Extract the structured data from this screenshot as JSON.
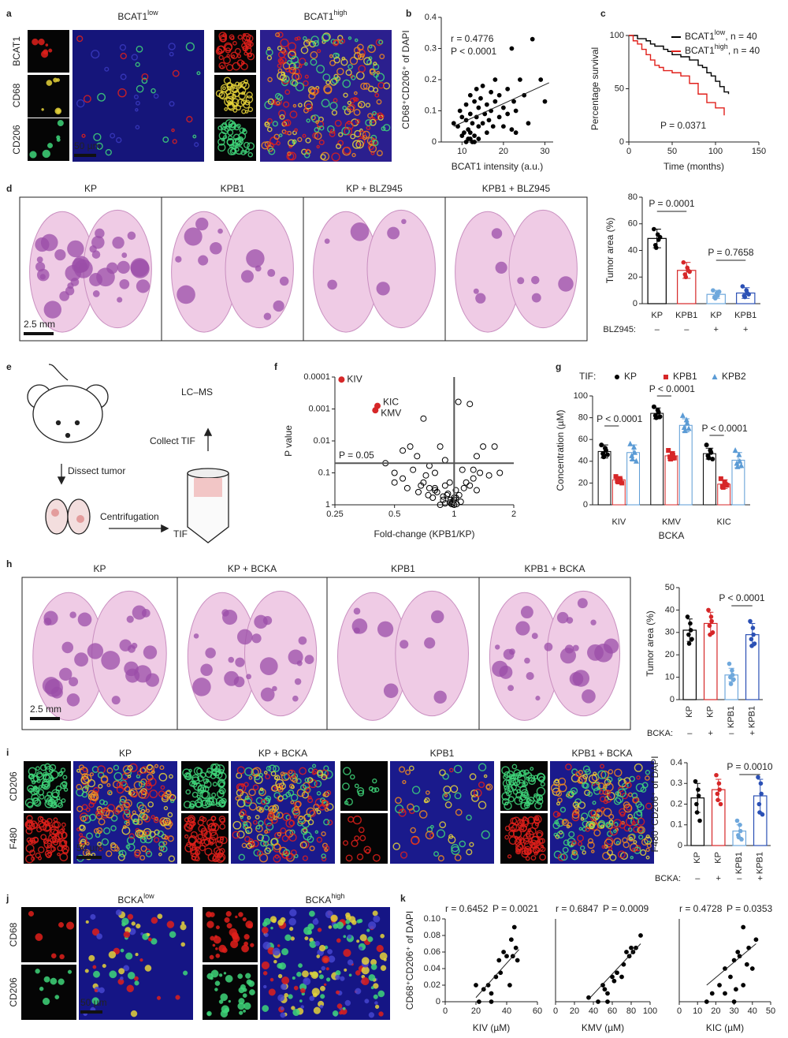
{
  "panel_letters": [
    "a",
    "b",
    "c",
    "d",
    "e",
    "f",
    "g",
    "h",
    "i",
    "j",
    "k"
  ],
  "panel_a": {
    "titles": [
      [
        "BCAT1",
        "low"
      ],
      [
        "BCAT1",
        "high"
      ]
    ],
    "channels": [
      "BCAT1",
      "CD68",
      "CD206"
    ],
    "scale_bar": "50 µm"
  },
  "panel_d": {
    "titles": [
      "KP",
      "KPB1",
      "KP + BLZ945",
      "KPB1 + BLZ945"
    ],
    "scale_bar": "2.5 mm"
  },
  "panel_e": {
    "steps": [
      "Dissect tumor",
      "Centrifugation",
      "TIF",
      "Collect TIF",
      "LC–MS"
    ]
  },
  "panel_h": {
    "titles": [
      "KP",
      "KP + BCKA",
      "KPB1",
      "KPB1 + BCKA"
    ],
    "scale_bar": "2.5 mm"
  },
  "panel_i": {
    "titles": [
      "KP",
      "KP + BCKA",
      "KPB1",
      "KPB1 + BCKA"
    ],
    "channels": [
      "CD206",
      "F480"
    ],
    "scale_bar": "50 µm"
  },
  "panel_j": {
    "titles": [
      [
        "BCKA",
        "low"
      ],
      [
        "BCKA",
        "high"
      ]
    ],
    "channels": [
      "CD68",
      "CD206"
    ],
    "scale_bar": "50 µm"
  },
  "chart_data": [
    {
      "type": "scatter",
      "annotations": [
        "r = 0.4776",
        "P < 0.0001"
      ],
      "xlabel": "BCAT1 intensity (a.u.)",
      "ylabel": "CD68⁺CD206⁺ of DAPI",
      "xlim": [
        5,
        32
      ],
      "ylim": [
        0,
        0.4
      ],
      "xticks": [
        10,
        20,
        30
      ],
      "yticks": [
        0,
        0.1,
        0.2,
        0.3,
        0.4
      ],
      "color": "#000000",
      "marker": "filled",
      "x": [
        8,
        9,
        9.5,
        10,
        10,
        10.5,
        11,
        11,
        11.5,
        11.5,
        12,
        12,
        12,
        12.5,
        12.5,
        13,
        13,
        13.5,
        13.5,
        14,
        14,
        14,
        14.5,
        15,
        15,
        15.5,
        16,
        16,
        16.5,
        17,
        17,
        17.5,
        18,
        18,
        19,
        19,
        20,
        20,
        21,
        21,
        22,
        22,
        22.5,
        23,
        23,
        24,
        25,
        26,
        27,
        29,
        30,
        11,
        12,
        13
      ],
      "y": [
        0.06,
        0.05,
        0.1,
        0.08,
        0.02,
        0.03,
        0.12,
        0.07,
        0.04,
        0.01,
        0.15,
        0.09,
        0.03,
        0.06,
        0,
        0.13,
        0.02,
        0.08,
        0.17,
        0.11,
        0.05,
        0.01,
        0.14,
        0.06,
        0.18,
        0.09,
        0.12,
        0.03,
        0.07,
        0.16,
        0.1,
        0.05,
        0.13,
        0.2,
        0.08,
        0.15,
        0.11,
        0.05,
        0.17,
        0.09,
        0.3,
        0.04,
        0.13,
        0.1,
        0.03,
        0.2,
        0.15,
        0.06,
        0.33,
        0.2,
        0.13,
        0,
        0.01,
        0
      ],
      "fit_line": {
        "x": [
          8,
          31
        ],
        "y": [
          0.05,
          0.19
        ]
      }
    },
    {
      "type": "step",
      "legend": "upper right",
      "annotations": [
        "P = 0.0371"
      ],
      "xlabel": "Time (months)",
      "ylabel": "Percentage survival",
      "xlim": [
        0,
        150
      ],
      "ylim": [
        0,
        100
      ],
      "xticks": [
        0,
        50,
        100,
        150
      ],
      "yticks": [
        0,
        50,
        100
      ],
      "series": [
        {
          "name": [
            "BCAT1",
            "low",
            ", n = 40"
          ],
          "color": "#000000",
          "x": [
            0,
            5,
            10,
            20,
            25,
            30,
            40,
            45,
            50,
            60,
            70,
            80,
            85,
            90,
            95,
            100,
            105,
            110,
            115
          ],
          "y": [
            100,
            100,
            97,
            95,
            92,
            90,
            87,
            85,
            82,
            80,
            77,
            72,
            70,
            65,
            62,
            57,
            52,
            47,
            45
          ]
        },
        {
          "name": [
            "BCAT1",
            "high",
            ", n = 40"
          ],
          "color": "#e0201b",
          "x": [
            0,
            5,
            10,
            15,
            20,
            25,
            30,
            35,
            40,
            50,
            60,
            70,
            80,
            90,
            100,
            110
          ],
          "y": [
            100,
            95,
            92,
            87,
            82,
            77,
            72,
            70,
            67,
            65,
            62,
            55,
            45,
            37,
            32,
            25
          ]
        }
      ]
    },
    {
      "type": "bar",
      "ylabel": "Tumor area (%)",
      "ylim": [
        0,
        80
      ],
      "yticks": [
        0,
        20,
        40,
        60,
        80
      ],
      "categories": [
        "KP",
        "KPB1",
        "KP",
        "KPB1"
      ],
      "values": [
        49,
        25,
        7,
        8
      ],
      "errors": [
        7,
        6,
        3,
        4
      ],
      "colors": [
        "#000000",
        "#d62728",
        "#6fa8dc",
        "#2b50b5"
      ],
      "points": [
        [
          56,
          52,
          48,
          44,
          42,
          50
        ],
        [
          31,
          27,
          25,
          22,
          20,
          24
        ],
        [
          10,
          8,
          6,
          5,
          4,
          9
        ],
        [
          13,
          10,
          8,
          6,
          5,
          7
        ]
      ],
      "conditions": {
        "label": "BLZ945:",
        "values": [
          "–",
          "–",
          "+",
          "+"
        ]
      },
      "annotations": [
        "P = 0.0001",
        "P = 0.7658"
      ]
    },
    {
      "type": "scatter",
      "xscale": "log",
      "yscale": "log",
      "xlabel": "Fold-change (KPB1/KP)",
      "ylabel": "P value",
      "xlim": [
        0.25,
        2
      ],
      "ylim": [
        1,
        0.0001
      ],
      "xticks": [
        0.25,
        0.5,
        1,
        2
      ],
      "yticks": [
        0.0001,
        0.001,
        0.01,
        0.1,
        1
      ],
      "color": "#000000",
      "marker": "open",
      "hline": 0.05,
      "vline": 1,
      "annotations": [
        "P = 0.05"
      ],
      "x": [
        0.55,
        0.6,
        0.65,
        0.7,
        0.75,
        0.8,
        0.85,
        0.9,
        0.95,
        1.05,
        1.1,
        1.2,
        1.3,
        1.4,
        1.6,
        0.5,
        0.55,
        0.7,
        0.8,
        0.9,
        1.0,
        1.15,
        1.25,
        0.62,
        0.72,
        0.82,
        0.92,
        1.02,
        1.12,
        0.68,
        0.78,
        0.88,
        0.98,
        1.08,
        0.85,
        0.9,
        0.95,
        0.97,
        1.0,
        1.0,
        1.03,
        0.93,
        0.88,
        0.8,
        0.75,
        1.25,
        1.35,
        1.5,
        1.7,
        0.45,
        0.5,
        0.58,
        0.66,
        0.74,
        1.2,
        1.3,
        0.98,
        0.96,
        1.02,
        1.06
      ],
      "y": [
        0.02,
        0.015,
        0.03,
        0.002,
        0.06,
        0.1,
        0.015,
        0.04,
        0.2,
        0.0006,
        0.08,
        0.0007,
        0.03,
        0.015,
        0.015,
        0.1,
        0.15,
        0.2,
        0.3,
        0.25,
        0.6,
        0.2,
        0.15,
        0.08,
        0.12,
        0.4,
        0.5,
        0.35,
        0.3,
        0.25,
        0.6,
        0.7,
        0.9,
        0.8,
        1,
        0.9,
        0.85,
        0.95,
        0.7,
        1,
        0.95,
        0.45,
        0.55,
        0.35,
        0.3,
        0.08,
        0.1,
        0.12,
        0.1,
        0.05,
        0.2,
        0.3,
        0.4,
        0.5,
        0.25,
        0.35,
        0.8,
        0.7,
        0.6,
        0.5
      ],
      "highlighted": {
        "labels": [
          "KIV",
          "KIC",
          "KMV"
        ],
        "x": [
          0.27,
          0.41,
          0.4
        ],
        "y": [
          0.00012,
          0.0008,
          0.0011
        ],
        "color": "#d62728"
      }
    },
    {
      "type": "bar",
      "legend_title": "TIF:",
      "xlabel": "BCKA",
      "ylabel": "Concentration (µM)",
      "ylim": [
        0,
        100
      ],
      "yticks": [
        0,
        20,
        40,
        60,
        80,
        100
      ],
      "categories": [
        "KIV",
        "KMV",
        "KIC"
      ],
      "series": [
        {
          "name": "KP",
          "color": "#000000",
          "marker": "circle",
          "values": [
            49,
            84,
            47
          ],
          "errors": [
            6,
            5,
            5
          ],
          "points": [
            [
              55,
              52,
              50,
              47,
              44,
              46
            ],
            [
              90,
              87,
              85,
              82,
              80,
              81
            ],
            [
              55,
              50,
              48,
              45,
              43,
              42
            ]
          ]
        },
        {
          "name": "KPB1",
          "color": "#d62728",
          "marker": "square",
          "values": [
            23,
            45,
            19
          ],
          "errors": [
            3,
            4,
            4
          ],
          "points": [
            [
              26,
              24,
              23,
              22,
              21,
              20
            ],
            [
              50,
              47,
              46,
              44,
              42,
              43
            ],
            [
              24,
              21,
              19,
              17,
              16,
              18
            ]
          ]
        },
        {
          "name": "KPB2",
          "color": "#5b9bd5",
          "marker": "triangle",
          "values": [
            48,
            73,
            41
          ],
          "errors": [
            7,
            6,
            7
          ],
          "points": [
            [
              56,
              53,
              48,
              45,
              42,
              40
            ],
            [
              82,
              78,
              75,
              71,
              68,
              70
            ],
            [
              50,
              46,
              40,
              38,
              35,
              36
            ]
          ]
        }
      ],
      "annotations": [
        "P < 0.0001",
        "P < 0.0001",
        "P < 0.0001"
      ]
    },
    {
      "type": "bar",
      "ylabel": "Tumor area (%)",
      "ylim": [
        0,
        50
      ],
      "yticks": [
        0,
        10,
        20,
        30,
        40,
        50
      ],
      "categories": [
        "KP",
        "KP",
        "KPB1",
        "KPB1"
      ],
      "values": [
        31,
        34,
        11,
        29
      ],
      "errors": [
        5,
        5,
        3,
        5
      ],
      "colors": [
        "#000000",
        "#d62728",
        "#6fa8dc",
        "#2b50b5"
      ],
      "points": [
        [
          37,
          34,
          31,
          29,
          25,
          27
        ],
        [
          40,
          37,
          35,
          33,
          29,
          30
        ],
        [
          16,
          13,
          11,
          10,
          7,
          9
        ],
        [
          35,
          32,
          29,
          27,
          24,
          25
        ]
      ],
      "conditions": {
        "label": "BCKA:",
        "values": [
          "–",
          "+",
          "–",
          "+"
        ]
      },
      "annotations": [
        "P < 0.0001"
      ]
    },
    {
      "type": "bar",
      "ylabel": "F480⁺CD206⁺ of DAPI",
      "ylim": [
        0,
        0.4
      ],
      "yticks": [
        0,
        0.1,
        0.2,
        0.3,
        0.4
      ],
      "categories": [
        "KP",
        "KP",
        "KPB1",
        "KPB1"
      ],
      "values": [
        0.23,
        0.27,
        0.07,
        0.24
      ],
      "errors": [
        0.07,
        0.05,
        0.03,
        0.08
      ],
      "colors": [
        "#000000",
        "#d62728",
        "#6fa8dc",
        "#2b50b5"
      ],
      "points": [
        [
          0.31,
          0.27,
          0.24,
          0.2,
          0.16,
          0.12
        ],
        [
          0.34,
          0.3,
          0.27,
          0.25,
          0.22,
          0.2
        ],
        [
          0.12,
          0.1,
          0.07,
          0.05,
          0.04,
          0.03
        ],
        [
          0.33,
          0.3,
          0.25,
          0.2,
          0.16,
          0.15
        ]
      ],
      "conditions": {
        "label": "BCKA:",
        "values": [
          "–",
          "+",
          "–",
          "+"
        ]
      },
      "annotations": [
        "P = 0.0010"
      ]
    },
    {
      "type": "scatter",
      "annotations": [
        "r = 0.6452",
        "P = 0.0021"
      ],
      "xlabel": "KIV (µM)",
      "ylabel": "CD68⁺CD206⁺ of DAPI",
      "xlim": [
        0,
        60
      ],
      "ylim": [
        0,
        0.1
      ],
      "xticks": [
        0,
        20,
        40,
        60
      ],
      "yticks": [
        0,
        0.02,
        0.04,
        0.06,
        0.08,
        {
          "value": 0.1,
          "label": "0.10"
        }
      ],
      "color": "#000000",
      "marker": "filled",
      "x": [
        20,
        22,
        25,
        28,
        30,
        30,
        33,
        35,
        36,
        38,
        40,
        42,
        43,
        44,
        45,
        46,
        47
      ],
      "y": [
        0.02,
        0,
        0.015,
        0.02,
        0.01,
        0,
        0.03,
        0.05,
        0.035,
        0.06,
        0.055,
        0.02,
        0.075,
        0.055,
        0.09,
        0.065,
        0.05
      ],
      "fit_line": {
        "x": [
          20,
          48
        ],
        "y": [
          0.005,
          0.063
        ]
      }
    },
    {
      "type": "scatter",
      "annotations": [
        "r = 0.6847",
        "P = 0.0009"
      ],
      "xlabel": "KMV (µM)",
      "xlim": [
        0,
        100
      ],
      "ylim": [
        0,
        0.1
      ],
      "xticks": [
        0,
        20,
        40,
        60,
        80,
        100
      ],
      "color": "#000000",
      "marker": "filled",
      "x": [
        35,
        45,
        50,
        52,
        55,
        55,
        60,
        62,
        65,
        70,
        72,
        75,
        78,
        80,
        82,
        85,
        90
      ],
      "y": [
        0.005,
        0,
        0.02,
        0.015,
        0.01,
        0,
        0.03,
        0.025,
        0.035,
        0.03,
        0.045,
        0.06,
        0.055,
        0.065,
        0.06,
        0.065,
        0.08
      ],
      "fit_line": {
        "x": [
          35,
          90
        ],
        "y": [
          0.003,
          0.07
        ]
      }
    },
    {
      "type": "scatter",
      "annotations": [
        "r = 0.4728",
        "P = 0.0353"
      ],
      "xlabel": "KIC (µM)",
      "xlim": [
        0,
        50
      ],
      "ylim": [
        0,
        0.1
      ],
      "xticks": [
        0,
        10,
        20,
        30,
        40,
        50
      ],
      "color": "#000000",
      "marker": "filled",
      "x": [
        15,
        18,
        22,
        25,
        28,
        30,
        31,
        32,
        33,
        35,
        35,
        37,
        38,
        40,
        42,
        25,
        30
      ],
      "y": [
        0,
        0.01,
        0.02,
        0.04,
        0.03,
        0.05,
        0.015,
        0.06,
        0.055,
        0.09,
        0.02,
        0.045,
        0.065,
        0.04,
        0.075,
        0.01,
        0
      ],
      "fit_line": {
        "x": [
          15,
          42
        ],
        "y": [
          0.02,
          0.07
        ]
      }
    }
  ]
}
